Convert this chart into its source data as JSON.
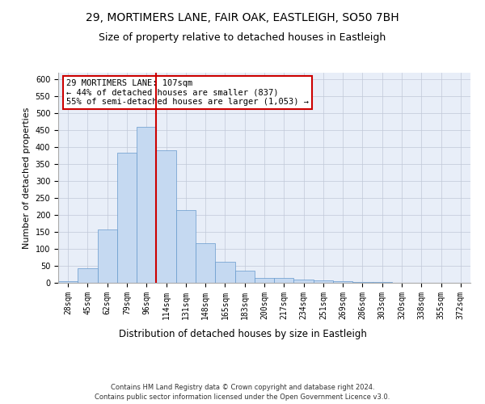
{
  "title1": "29, MORTIMERS LANE, FAIR OAK, EASTLEIGH, SO50 7BH",
  "title2": "Size of property relative to detached houses in Eastleigh",
  "xlabel": "Distribution of detached houses by size in Eastleigh",
  "ylabel": "Number of detached properties",
  "categories": [
    "28sqm",
    "45sqm",
    "62sqm",
    "79sqm",
    "96sqm",
    "114sqm",
    "131sqm",
    "148sqm",
    "165sqm",
    "183sqm",
    "200sqm",
    "217sqm",
    "234sqm",
    "251sqm",
    "269sqm",
    "286sqm",
    "303sqm",
    "320sqm",
    "338sqm",
    "355sqm",
    "372sqm"
  ],
  "values": [
    5,
    42,
    158,
    385,
    460,
    390,
    215,
    118,
    62,
    35,
    15,
    15,
    10,
    7,
    5,
    3,
    2,
    1,
    1,
    1,
    1
  ],
  "bar_color": "#c5d9f1",
  "bar_edge_color": "#6699cc",
  "vline_pos": 4.5,
  "vline_label": "29 MORTIMERS LANE: 107sqm",
  "annotation_line2": "← 44% of detached houses are smaller (837)",
  "annotation_line3": "55% of semi-detached houses are larger (1,053) →",
  "annotation_box_color": "#ffffff",
  "annotation_box_edge": "#cc0000",
  "vline_color": "#cc0000",
  "ylim": [
    0,
    620
  ],
  "yticks": [
    0,
    50,
    100,
    150,
    200,
    250,
    300,
    350,
    400,
    450,
    500,
    550,
    600
  ],
  "grid_color": "#c0c8d8",
  "background_color": "#e8eef8",
  "footer1": "Contains HM Land Registry data © Crown copyright and database right 2024.",
  "footer2": "Contains public sector information licensed under the Open Government Licence v3.0.",
  "title1_fontsize": 10,
  "title2_fontsize": 9,
  "tick_fontsize": 7,
  "ylabel_fontsize": 8,
  "xlabel_fontsize": 8.5,
  "annotation_fontsize": 7.5,
  "footer_fontsize": 6
}
